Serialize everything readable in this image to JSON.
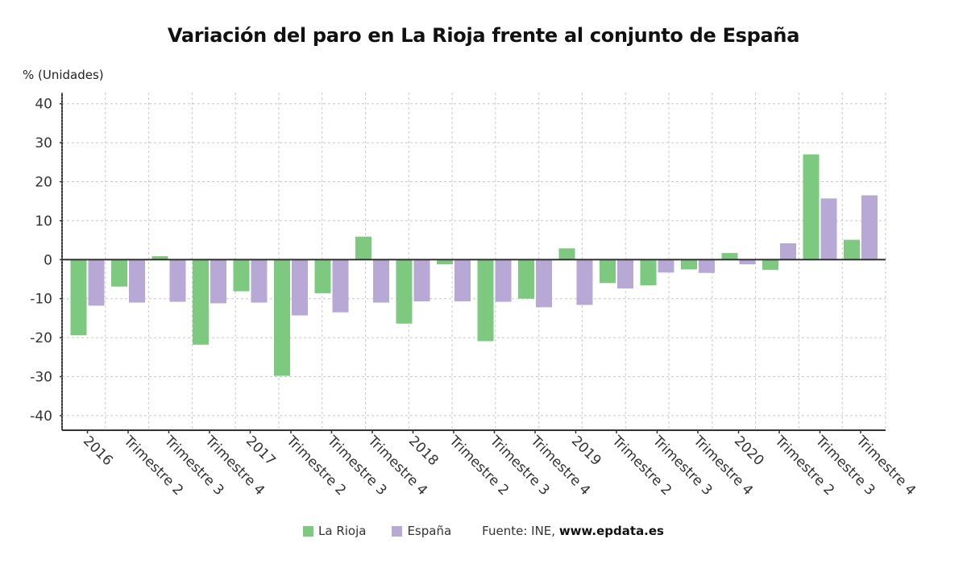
{
  "chart_data": {
    "type": "bar",
    "title": "Variación del paro en La Rioja frente al conjunto de España",
    "xlabel": "",
    "ylabel": "% (Unidades)",
    "ylim": [
      -43,
      43
    ],
    "yticks": [
      40,
      30,
      20,
      10,
      0,
      -10,
      -20,
      -30,
      -40
    ],
    "grid": true,
    "legend_position": "bottom",
    "categories": [
      "2016",
      "Trimestre 2",
      "Trimestre 3",
      "Trimestre 4",
      "2017",
      "Trimestre 2",
      "Trimestre 3",
      "Trimestre 4",
      "2018",
      "Trimestre 2",
      "Trimestre 3",
      "Trimestre 4",
      "2019",
      "Trimestre 2",
      "Trimestre 3",
      "Trimestre 4",
      "2020",
      "Trimestre 2",
      "Trimestre 3",
      "Trimestre 4"
    ],
    "series": [
      {
        "name": "La Rioja",
        "color": "#7dc97f",
        "values": [
          -19.4,
          -6.9,
          0.9,
          -21.8,
          -8.1,
          -29.8,
          -8.6,
          5.9,
          -16.4,
          -1.2,
          -20.9,
          -10.0,
          2.9,
          -6.0,
          -6.6,
          -2.5,
          1.7,
          -2.6,
          27.0,
          5.1
        ]
      },
      {
        "name": "España",
        "color": "#b8a8d6",
        "values": [
          -11.8,
          -11.0,
          -10.8,
          -11.2,
          -11.0,
          -14.3,
          -13.5,
          -11.0,
          -10.7,
          -10.7,
          -10.8,
          -12.2,
          -11.6,
          -7.4,
          -3.3,
          -3.4,
          -1.2,
          4.2,
          15.7,
          16.5
        ]
      }
    ],
    "source_prefix": "Fuente: INE, ",
    "source_site": "www.epdata.es"
  }
}
